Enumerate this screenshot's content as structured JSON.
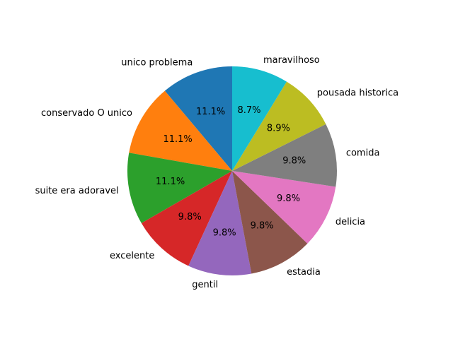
{
  "chart_data": {
    "type": "pie",
    "start_angle_deg": 90,
    "direction": "counterclockwise",
    "slices": [
      {
        "label": "unico problema",
        "value": 11.1,
        "pct_label": "11.1%",
        "color": "#1f77b4"
      },
      {
        "label": "conservado O unico",
        "value": 11.1,
        "pct_label": "11.1%",
        "color": "#ff7f0e"
      },
      {
        "label": "suite era adoravel",
        "value": 11.1,
        "pct_label": "11.1%",
        "color": "#2ca02c"
      },
      {
        "label": "excelente",
        "value": 9.8,
        "pct_label": "9.8%",
        "color": "#d62728"
      },
      {
        "label": "gentil",
        "value": 9.8,
        "pct_label": "9.8%",
        "color": "#9467bd"
      },
      {
        "label": "estadia",
        "value": 9.8,
        "pct_label": "9.8%",
        "color": "#8c564b"
      },
      {
        "label": "delicia",
        "value": 9.8,
        "pct_label": "9.8%",
        "color": "#e377c2"
      },
      {
        "label": "comida",
        "value": 9.8,
        "pct_label": "9.8%",
        "color": "#7f7f7f"
      },
      {
        "label": "pousada historica",
        "value": 8.9,
        "pct_label": "8.9%",
        "color": "#bcbd22"
      },
      {
        "label": "maravilhoso",
        "value": 8.7,
        "pct_label": "8.7%",
        "color": "#17becf"
      }
    ]
  }
}
